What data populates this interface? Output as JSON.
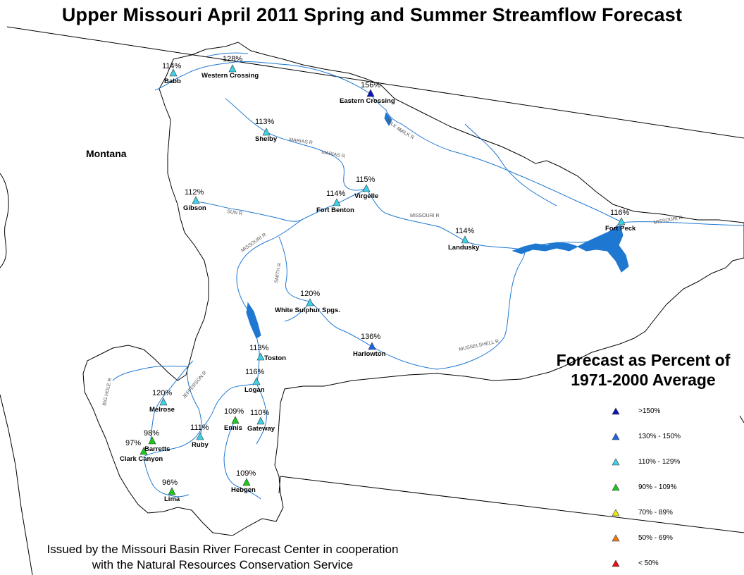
{
  "title": "Upper Missouri April 2011 Spring and Summer Streamflow Forecast",
  "state_label": "Montana",
  "legend": {
    "title_line1": "Forecast as Percent of",
    "title_line2": "1971-2000 Average",
    "items": [
      {
        "label": ">150%",
        "color": "#0a16b4"
      },
      {
        "label": "130% - 150%",
        "color": "#1e64e6"
      },
      {
        "label": "110% - 129%",
        "color": "#3cd2e6"
      },
      {
        "label": "90% - 109%",
        "color": "#1ec81e"
      },
      {
        "label": "70% - 89%",
        "color": "#f0e614"
      },
      {
        "label": "50% - 69%",
        "color": "#f07814"
      },
      {
        "label": "< 50%",
        "color": "#e61414"
      }
    ]
  },
  "footer": {
    "line1": "Issued by the Missouri Basin River Forecast Center in cooperation",
    "line2": "with the Natural Resources Conservation Service"
  },
  "stations": [
    {
      "id": "babb",
      "name": "Babb",
      "pct": "114%",
      "category": "110% - 129%"
    },
    {
      "id": "western-crossing",
      "name": "Western Crossing",
      "pct": "128%",
      "category": "110% - 129%"
    },
    {
      "id": "eastern-crossing",
      "name": "Eastern Crossing",
      "pct": "156%",
      "category": ">150%"
    },
    {
      "id": "shelby",
      "name": "Shelby",
      "pct": "113%",
      "category": "110% - 129%"
    },
    {
      "id": "virgelle",
      "name": "Virgelle",
      "pct": "115%",
      "category": "110% - 129%"
    },
    {
      "id": "fort-benton",
      "name": "Fort Benton",
      "pct": "114%",
      "category": "110% - 129%"
    },
    {
      "id": "gibson",
      "name": "Gibson",
      "pct": "112%",
      "category": "110% - 129%"
    },
    {
      "id": "fort-peck",
      "name": "Fort Peck",
      "pct": "116%",
      "category": "110% - 129%"
    },
    {
      "id": "landusky",
      "name": "Landusky",
      "pct": "114%",
      "category": "110% - 129%"
    },
    {
      "id": "white-sulphur",
      "name": "White Sulphur Spgs.",
      "pct": "120%",
      "category": "110% - 129%"
    },
    {
      "id": "harlowton",
      "name": "Harlowton",
      "pct": "136%",
      "category": "130% - 150%"
    },
    {
      "id": "toston",
      "name": "Toston",
      "pct": "113%",
      "category": "110% - 129%"
    },
    {
      "id": "logan",
      "name": "Logan",
      "pct": "116%",
      "category": "110% - 129%"
    },
    {
      "id": "melrose",
      "name": "Melrose",
      "pct": "120%",
      "category": "110% - 129%"
    },
    {
      "id": "ennis",
      "name": "Ennis",
      "pct": "109%",
      "category": "90% - 109%"
    },
    {
      "id": "gateway",
      "name": "Gateway",
      "pct": "110%",
      "category": "110% - 129%"
    },
    {
      "id": "barretts",
      "name": "Barretts",
      "pct": "98%",
      "category": "90% - 109%"
    },
    {
      "id": "ruby",
      "name": "Ruby",
      "pct": "111%",
      "category": "110% - 129%"
    },
    {
      "id": "clark-canyon",
      "name": "Clark Canyon",
      "pct": "97%",
      "category": "90% - 109%"
    },
    {
      "id": "lima",
      "name": "Lima",
      "pct": "96%",
      "category": "90% - 109%"
    },
    {
      "id": "hebgen",
      "name": "Hebgen",
      "pct": "109%",
      "category": "90% - 109%"
    }
  ],
  "river_labels": {
    "milk_r_1": "MILK R",
    "milk_r_2": "MILK R",
    "marias_r_1": "MARIAS R",
    "marias_r_2": "MARIAS R",
    "sun_r": "SUN R",
    "missouri_r_1": "MISSOURI R",
    "missouri_r_2": "MISSOURI R",
    "missouri_r_3": "MISSOURI R",
    "smith_r": "SMITH R",
    "musselshell_r": "MUSSELSHELL R",
    "jefferson_r": "JEFFERSON R",
    "big_hole_r": "BIG HOLE R"
  }
}
